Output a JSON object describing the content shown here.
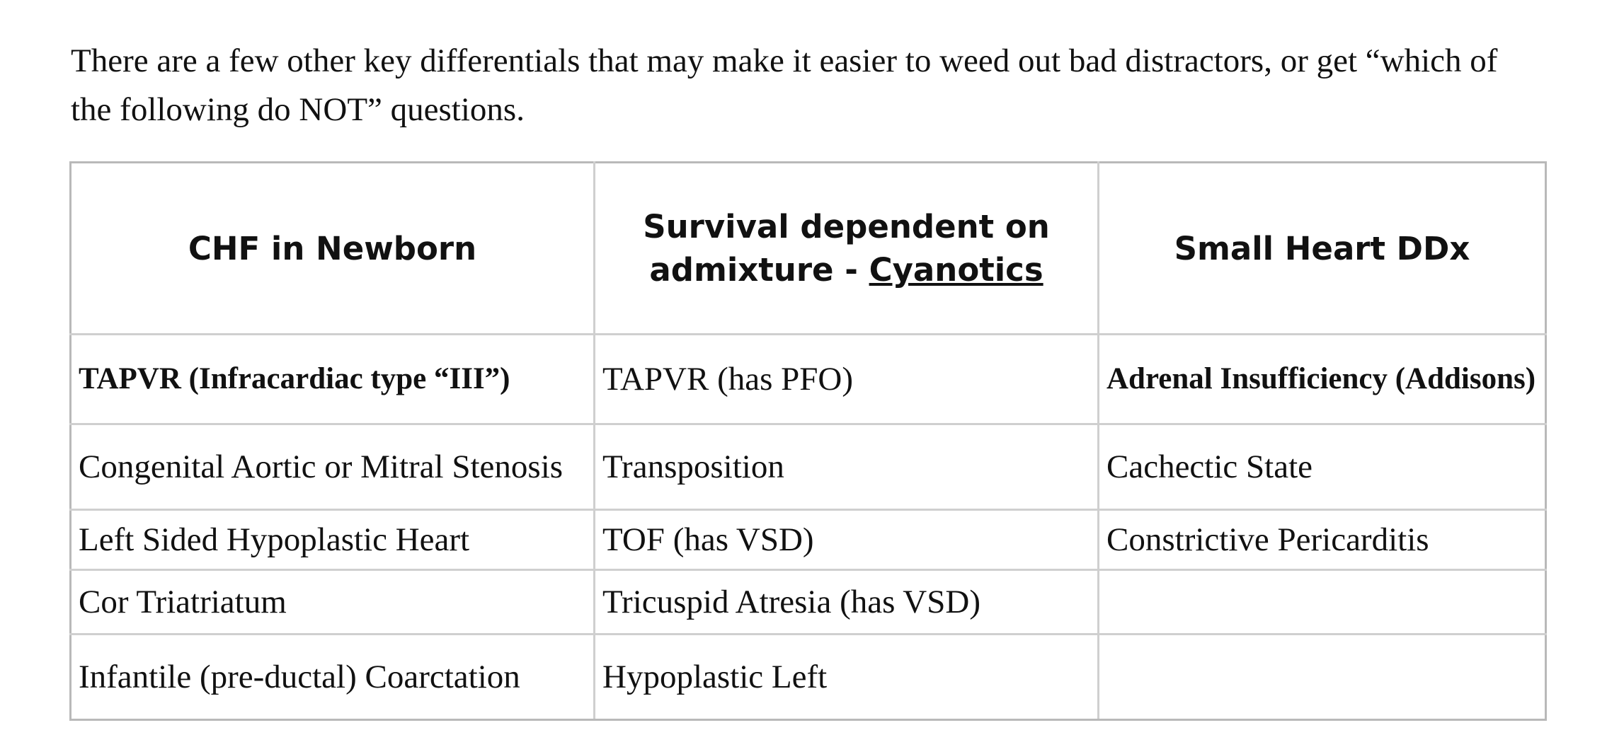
{
  "intro": {
    "text": "There are a few other key differentials that may make it easier to weed out bad distractors, or get “which of the following do NOT” questions."
  },
  "table": {
    "headers": {
      "col1": "CHF in Newborn",
      "col2_prefix": "Survival dependent on admixture - ",
      "col2_underlined": "Cyanotics",
      "col3": "Small Heart DDx"
    },
    "rows": [
      [
        "TAPVR (Infracardiac type “III”)",
        "TAPVR (has PFO)",
        "Adrenal Insufficiency (Addisons)"
      ],
      [
        "Congenital Aortic or Mitral Stenosis",
        "Transposition",
        "Cachectic State"
      ],
      [
        "Left Sided Hypoplastic Heart",
        "TOF (has VSD)",
        "Constrictive Pericarditis"
      ],
      [
        "Cor Triatriatum",
        "Tricuspid Atresia (has VSD)",
        ""
      ],
      [
        "Infantile (pre-ductal) Coarctation",
        "Hypoplastic Left",
        ""
      ]
    ]
  }
}
